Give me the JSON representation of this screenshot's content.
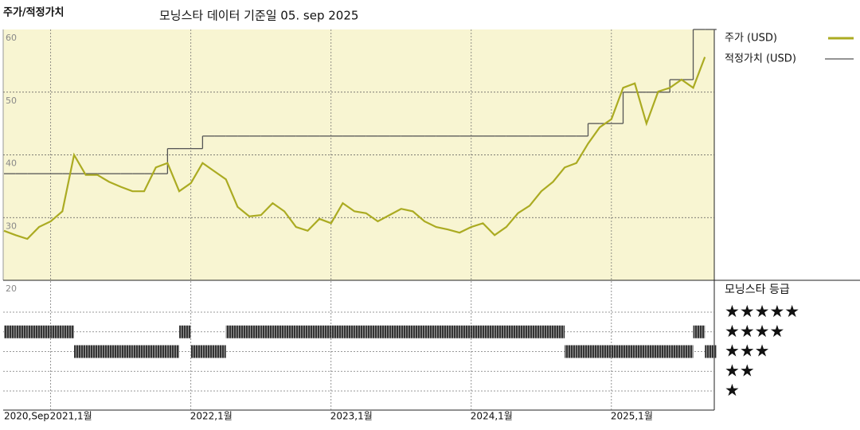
{
  "chart_data": {
    "type": "line",
    "title": "주가/적정가치",
    "subtitle": "모닝스타 데이터 기준일 05. sep 2025",
    "categories": [
      "2020,Sep",
      null,
      null,
      null,
      "2021,1월",
      null,
      null,
      null,
      null,
      null,
      null,
      null,
      null,
      null,
      null,
      null,
      "2022,1월",
      null,
      null,
      null,
      null,
      null,
      null,
      null,
      null,
      null,
      null,
      null,
      "2023,1월",
      null,
      null,
      null,
      null,
      null,
      null,
      null,
      null,
      null,
      null,
      null,
      "2024,1월",
      null,
      null,
      null,
      null,
      null,
      null,
      null,
      null,
      null,
      null,
      null,
      "2025,1월",
      null,
      null,
      null,
      null,
      null,
      null,
      null,
      null
    ],
    "series": [
      {
        "name": "주가 (USD)",
        "color": "#abab22",
        "values": [
          27.9,
          27.2,
          26.6,
          28.5,
          29.4,
          31,
          40,
          36.8,
          36.8,
          35.7,
          34.9,
          34.2,
          34.2,
          38,
          38.7,
          34.2,
          35.5,
          38.7,
          37.4,
          36.1,
          31.7,
          30.2,
          30.4,
          32.3,
          31,
          28.5,
          27.9,
          29.8,
          29.1,
          32.3,
          31,
          30.7,
          29.4,
          30.4,
          31.4,
          31,
          29.4,
          28.5,
          28.1,
          27.6,
          28.5,
          29.1,
          27.2,
          28.5,
          30.7,
          31.9,
          34.2,
          35.7,
          38,
          38.7,
          41.8,
          44.4,
          45.7,
          50.7,
          51.4,
          45,
          50.1,
          50.7,
          52,
          50.7,
          55.6
        ]
      },
      {
        "name": "적정가치 (USD)",
        "color": "#555555",
        "values": [
          37,
          37,
          37,
          37,
          37,
          37,
          37,
          37,
          37,
          37,
          37,
          37,
          37,
          37,
          41,
          41,
          41,
          43,
          43,
          43,
          43,
          43,
          43,
          43,
          43,
          43,
          43,
          43,
          43,
          43,
          43,
          43,
          43,
          43,
          43,
          43,
          43,
          43,
          43,
          43,
          43,
          43,
          43,
          43,
          43,
          43,
          43,
          43,
          43,
          43,
          45,
          45,
          45,
          50,
          50,
          50,
          50,
          52,
          52,
          60,
          60
        ]
      }
    ],
    "ylim": [
      20,
      60
    ],
    "yticks": [
      20,
      30,
      40,
      50,
      60
    ],
    "grid": true,
    "rating": {
      "name": "모닝스타 등급",
      "color": "#333333",
      "values": [
        4,
        4,
        4,
        4,
        4,
        4,
        3,
        3,
        3,
        3,
        3,
        3,
        3,
        3,
        3,
        4,
        3,
        3,
        3,
        4,
        4,
        4,
        4,
        4,
        4,
        4,
        4,
        4,
        4,
        4,
        4,
        4,
        4,
        4,
        4,
        4,
        4,
        4,
        4,
        4,
        4,
        4,
        4,
        4,
        4,
        4,
        4,
        4,
        3,
        3,
        3,
        3,
        3,
        3,
        3,
        3,
        3,
        3,
        3,
        4,
        3
      ],
      "ticks": [
        {
          "value": 5,
          "label": "★★★★★"
        },
        {
          "value": 4,
          "label": "★★★★"
        },
        {
          "value": 3,
          "label": "★★★"
        },
        {
          "value": 2,
          "label": "★★"
        },
        {
          "value": 1,
          "label": "★"
        }
      ]
    }
  }
}
